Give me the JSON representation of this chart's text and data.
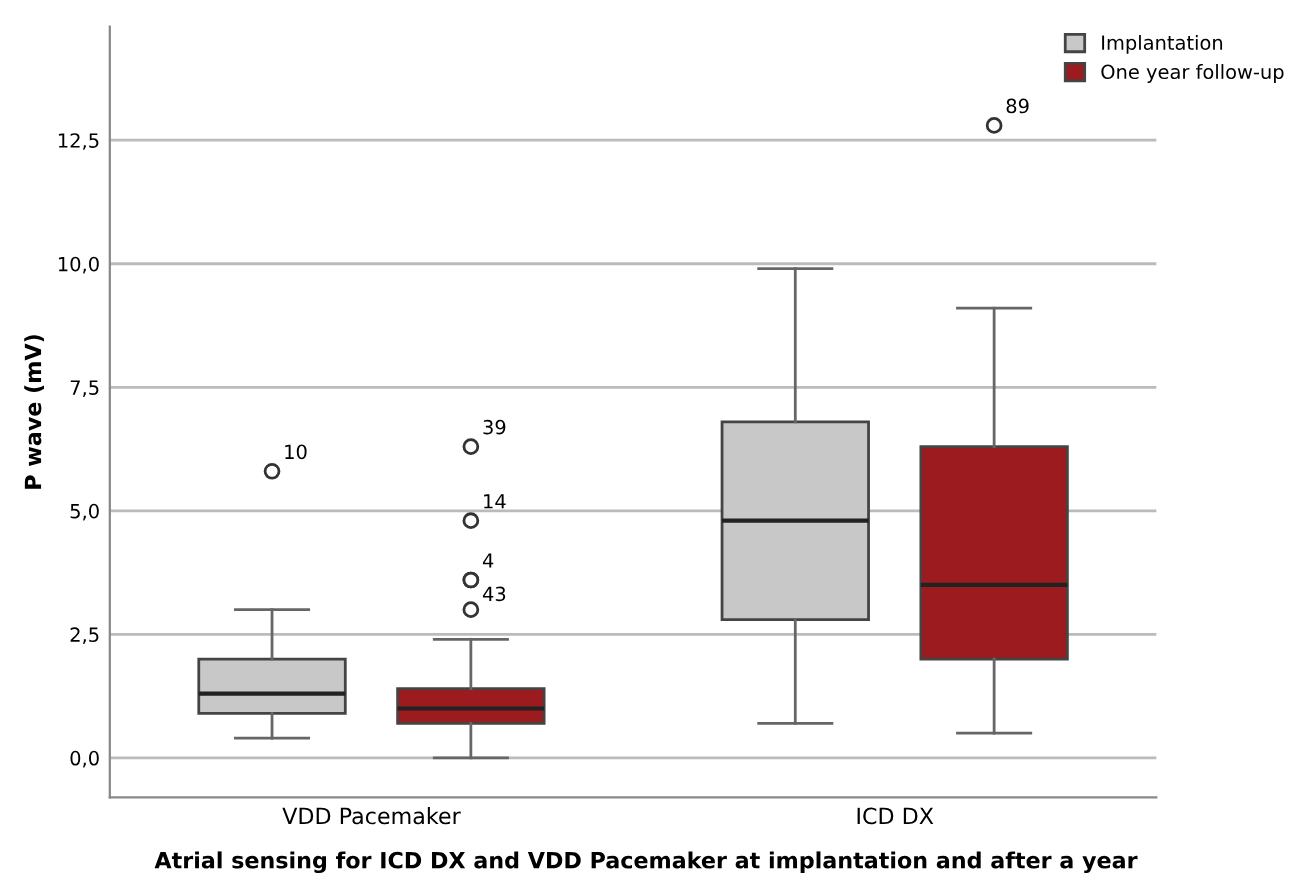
{
  "chart_data": {
    "type": "box",
    "title": "Atrial sensing for ICD DX and VDD Pacemaker at implantation and after a year",
    "ylabel": "P wave (mV)",
    "categories": [
      "VDD Pacemaker",
      "ICD DX"
    ],
    "series": [
      {
        "name": "Implantation",
        "color": "#c8c8c8",
        "boxes": [
          {
            "low": 0.4,
            "q1": 0.9,
            "median": 1.3,
            "q3": 2.0,
            "high": 3.0,
            "outliers": [
              5.8
            ]
          },
          {
            "low": 0.7,
            "q1": 2.8,
            "median": 4.8,
            "q3": 6.8,
            "high": 9.9
          }
        ]
      },
      {
        "name": "One year follow-up",
        "color": "#9b1b1e",
        "boxes": [
          {
            "low": 0.0,
            "q1": 0.7,
            "median": 1.0,
            "q3": 1.4,
            "high": 2.4,
            "outliers": [
              3.0,
              3.6,
              3.6,
              4.8,
              6.3
            ]
          },
          {
            "low": 0.5,
            "q1": 2.0,
            "median": 3.5,
            "q3": 6.3,
            "high": 9.1,
            "outliers": [
              12.8
            ]
          }
        ]
      }
    ],
    "annotations": [
      "10",
      "39",
      "14",
      "4",
      "43",
      "89"
    ],
    "ylim": [
      -0.8,
      14.8
    ],
    "yticks": [
      {
        "value": 0,
        "label": "0,0"
      },
      {
        "value": 2.5,
        "label": "2,5"
      },
      {
        "value": 5,
        "label": "5,0"
      },
      {
        "value": 7.5,
        "label": "7,5"
      },
      {
        "value": 10,
        "label": "10,0"
      },
      {
        "value": 12.5,
        "label": "12,5"
      }
    ],
    "grid": "y",
    "legend": "top right"
  }
}
